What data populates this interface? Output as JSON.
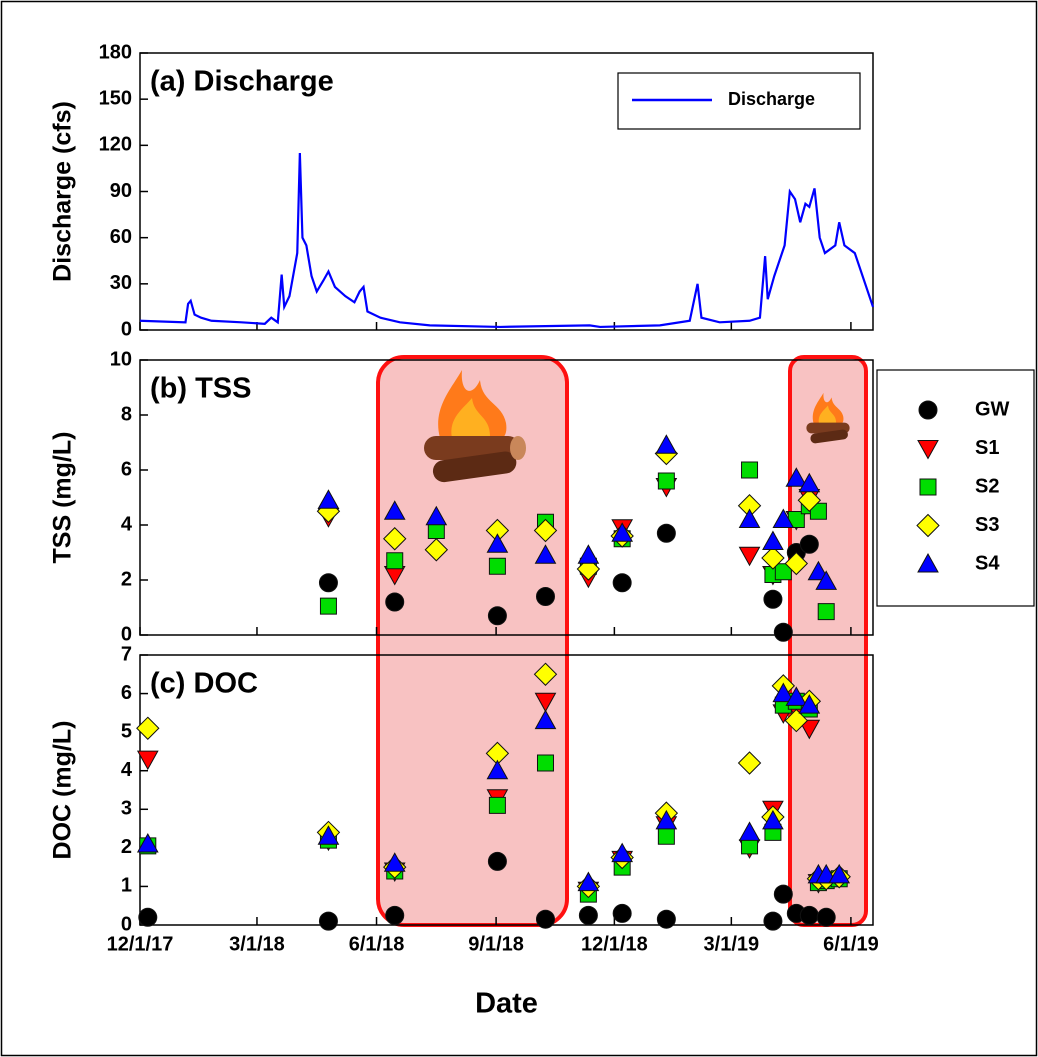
{
  "chart_data": [
    {
      "type": "line",
      "title": "(a) Discharge",
      "ylabel": "Discharge (cfs)",
      "x": [
        "2017-12-01",
        "2018-01-05",
        "2018-01-07",
        "2018-01-09",
        "2018-01-12",
        "2018-01-17",
        "2018-01-25",
        "2018-02-17",
        "2018-03-07",
        "2018-03-12",
        "2018-03-17",
        "2018-03-20",
        "2018-03-22",
        "2018-03-26",
        "2018-04-01",
        "2018-04-03",
        "2018-04-05",
        "2018-04-08",
        "2018-04-12",
        "2018-04-16",
        "2018-04-21",
        "2018-04-25",
        "2018-04-30",
        "2018-05-08",
        "2018-05-15",
        "2018-05-19",
        "2018-05-22",
        "2018-05-25",
        "2018-06-04",
        "2018-06-19",
        "2018-07-12",
        "2018-09-04",
        "2018-11-12",
        "2018-11-20",
        "2019-01-05",
        "2019-01-28",
        "2019-02-03",
        "2019-02-06",
        "2019-02-20",
        "2019-03-15",
        "2019-03-23",
        "2019-03-27",
        "2019-03-29",
        "2019-04-03",
        "2019-04-11",
        "2019-04-15",
        "2019-04-19",
        "2019-04-23",
        "2019-04-27",
        "2019-04-30",
        "2019-05-04",
        "2019-05-08",
        "2019-05-12",
        "2019-05-20",
        "2019-05-23",
        "2019-05-27",
        "2019-06-04",
        "2019-06-12",
        "2019-06-18"
      ],
      "series": [
        {
          "name": "Discharge",
          "color": "#0000ff",
          "values": [
            6,
            5,
            17,
            19,
            10,
            8,
            6,
            5,
            4,
            8,
            5,
            36,
            15,
            22,
            50,
            115,
            60,
            55,
            35,
            25,
            32,
            38,
            28,
            22,
            18,
            25,
            28,
            12,
            8,
            5,
            3,
            2,
            3,
            2,
            3,
            6,
            30,
            8,
            5,
            6,
            8,
            48,
            20,
            35,
            55,
            90,
            85,
            70,
            82,
            80,
            92,
            60,
            50,
            55,
            70,
            55,
            50,
            30,
            15
          ]
        }
      ],
      "xlim": [
        "2017-12-01",
        "2019-06-18"
      ],
      "ylim": [
        0,
        180
      ],
      "yticks": [
        0,
        30,
        60,
        90,
        120,
        150,
        180
      ],
      "legend": "upper right"
    },
    {
      "type": "scatter",
      "title": "(b) TSS",
      "ylabel": "TSS (mg/L)",
      "x": [
        "2017-12-07",
        "2018-04-25",
        "2018-06-15",
        "2018-07-17",
        "2018-09-02",
        "2018-10-09",
        "2018-11-11",
        "2018-12-07",
        "2019-01-10",
        "2019-03-15",
        "2019-04-02",
        "2019-04-10",
        "2019-04-20",
        "2019-04-30",
        "2019-05-07",
        "2019-05-13",
        "2019-05-23"
      ],
      "series": [
        {
          "name": "GW",
          "color": "#000000",
          "marker": "circle",
          "values": [
            null,
            1.9,
            1.2,
            null,
            0.7,
            1.4,
            null,
            1.9,
            3.7,
            null,
            1.3,
            0.1,
            3.0,
            3.3,
            null,
            null,
            null
          ]
        },
        {
          "name": "S1",
          "color": "#ff0000",
          "marker": "triangle-down",
          "values": [
            null,
            4.3,
            2.2,
            null,
            null,
            null,
            2.1,
            3.9,
            5.4,
            2.9,
            2.2,
            null,
            4.2,
            5.0,
            null,
            null,
            null
          ]
        },
        {
          "name": "S2",
          "color": "#00dd00",
          "marker": "square",
          "values": [
            null,
            1.05,
            2.7,
            3.8,
            2.5,
            4.1,
            2.5,
            3.5,
            5.6,
            6.0,
            2.2,
            2.3,
            4.2,
            4.7,
            4.5,
            0.85,
            null
          ]
        },
        {
          "name": "S3",
          "color": "#ffff00",
          "marker": "diamond",
          "values": [
            null,
            4.5,
            3.5,
            3.1,
            3.8,
            3.8,
            2.4,
            3.6,
            6.6,
            4.7,
            2.8,
            null,
            2.6,
            4.9,
            null,
            null,
            null
          ]
        },
        {
          "name": "S4",
          "color": "#0000ff",
          "marker": "triangle-up",
          "values": [
            null,
            4.9,
            4.5,
            4.3,
            3.3,
            2.9,
            2.9,
            3.7,
            6.9,
            4.2,
            3.4,
            4.2,
            5.7,
            5.5,
            2.3,
            1.95,
            null
          ]
        }
      ],
      "xlim": [
        "2017-12-01",
        "2019-06-18"
      ],
      "ylim": [
        0,
        10
      ],
      "yticks": [
        0,
        2,
        4,
        6,
        8,
        10
      ],
      "legend": "outside right"
    },
    {
      "type": "scatter",
      "title": "(c) DOC",
      "ylabel": "DOC (mg/L)",
      "xlabel": "Date",
      "x": [
        "2017-12-07",
        "2018-04-25",
        "2018-06-15",
        "2018-07-17",
        "2018-09-02",
        "2018-10-09",
        "2018-11-11",
        "2018-12-07",
        "2019-01-10",
        "2019-03-15",
        "2019-04-02",
        "2019-04-10",
        "2019-04-20",
        "2019-04-30",
        "2019-05-07",
        "2019-05-13",
        "2019-05-23"
      ],
      "series": [
        {
          "color": "#000000",
          "marker": "circle",
          "values": [
            0.2,
            0.1,
            0.25,
            null,
            1.65,
            0.15,
            0.25,
            0.3,
            0.15,
            null,
            0.1,
            0.8,
            0.3,
            0.25,
            null,
            0.2,
            null
          ]
        },
        {
          "color": "#ff0000",
          "marker": "triangle-down",
          "values": [
            4.3,
            2.2,
            1.4,
            null,
            3.3,
            5.8,
            0.9,
            1.7,
            2.6,
            2.0,
            3.0,
            5.5,
            5.6,
            5.1,
            1.1,
            null,
            null
          ]
        },
        {
          "color": "#00dd00",
          "marker": "square",
          "values": [
            2.05,
            2.2,
            1.4,
            null,
            3.1,
            4.2,
            0.8,
            1.5,
            2.3,
            2.05,
            2.4,
            5.7,
            5.8,
            5.6,
            1.1,
            1.15,
            1.2
          ]
        },
        {
          "color": "#ffff00",
          "marker": "diamond",
          "values": [
            5.1,
            2.4,
            1.5,
            null,
            4.45,
            6.5,
            1.0,
            1.75,
            2.9,
            4.2,
            2.8,
            6.2,
            5.3,
            5.8,
            1.2,
            1.2,
            1.25
          ]
        },
        {
          "color": "#0000ff",
          "marker": "triangle-up",
          "values": [
            2.1,
            2.3,
            1.6,
            null,
            4.0,
            5.3,
            1.1,
            1.85,
            2.7,
            2.4,
            2.7,
            6.0,
            5.9,
            5.7,
            1.3,
            1.3,
            1.3
          ]
        }
      ],
      "xlim": [
        "2017-12-01",
        "2019-06-18"
      ],
      "ylim": [
        0,
        7
      ],
      "yticks": [
        0,
        1,
        2,
        3,
        4,
        5,
        6,
        7
      ],
      "xticks": [
        {
          "value": "2017-12-01",
          "label": "12/1/17"
        },
        {
          "value": "2018-03-01",
          "label": "3/1/18"
        },
        {
          "value": "2018-06-01",
          "label": "6/1/18"
        },
        {
          "value": "2018-09-01",
          "label": "9/1/18"
        },
        {
          "value": "2018-12-01",
          "label": "12/1/18"
        },
        {
          "value": "2019-03-01",
          "label": "3/1/19"
        },
        {
          "value": "2019-06-01",
          "label": "6/1/19"
        }
      ]
    }
  ]
}
